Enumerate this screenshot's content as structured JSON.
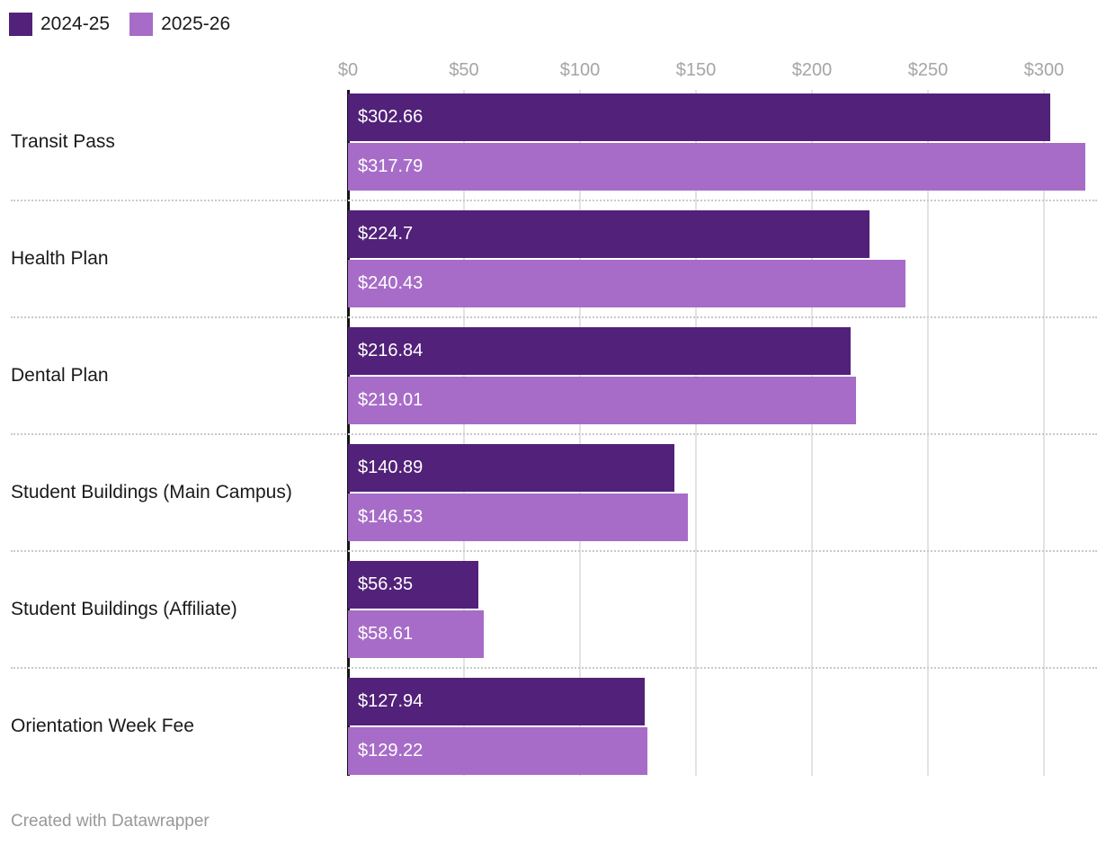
{
  "legend": {
    "items": [
      {
        "label": "2024-25",
        "color": "#522179"
      },
      {
        "label": "2025-26",
        "color": "#A76CC8"
      }
    ]
  },
  "chart_data": {
    "type": "bar",
    "orientation": "horizontal",
    "title": "",
    "categories": [
      "Transit Pass",
      "Health Plan",
      "Dental Plan",
      "Student Buildings (Main Campus)",
      "Student Buildings (Affiliate)",
      "Orientation Week Fee"
    ],
    "series": [
      {
        "name": "2024-25",
        "color": "#522179",
        "values": [
          302.66,
          224.7,
          216.84,
          140.89,
          56.35,
          127.94
        ],
        "labels": [
          "$302.66",
          "$224.7",
          "$216.84",
          "$140.89",
          "$56.35",
          "$127.94"
        ]
      },
      {
        "name": "2025-26",
        "color": "#A76CC8",
        "values": [
          317.79,
          240.43,
          219.01,
          146.53,
          58.61,
          129.22
        ],
        "labels": [
          "$317.79",
          "$240.43",
          "$219.01",
          "$146.53",
          "$58.61",
          "$129.22"
        ]
      }
    ],
    "axis": {
      "ticks": [
        0,
        50,
        100,
        150,
        200,
        250,
        300
      ],
      "tick_labels": [
        "$0",
        "$50",
        "$100",
        "$150",
        "$200",
        "$250",
        "$300"
      ],
      "range": [
        0,
        323
      ]
    },
    "grid": true,
    "legend_position": "top-left"
  },
  "footer": {
    "credit": "Created with Datawrapper"
  },
  "colors": {
    "bar_dark": "#522179",
    "bar_light": "#A76CC8",
    "axis_line": "#141414",
    "gridline": "#e3e3e3",
    "separator": "#c9c9c9",
    "tick_text": "#a5a5a5",
    "category_text": "#1a1a1a",
    "value_text": "#ffffff",
    "footer_text": "#989898",
    "background": "#ffffff"
  }
}
